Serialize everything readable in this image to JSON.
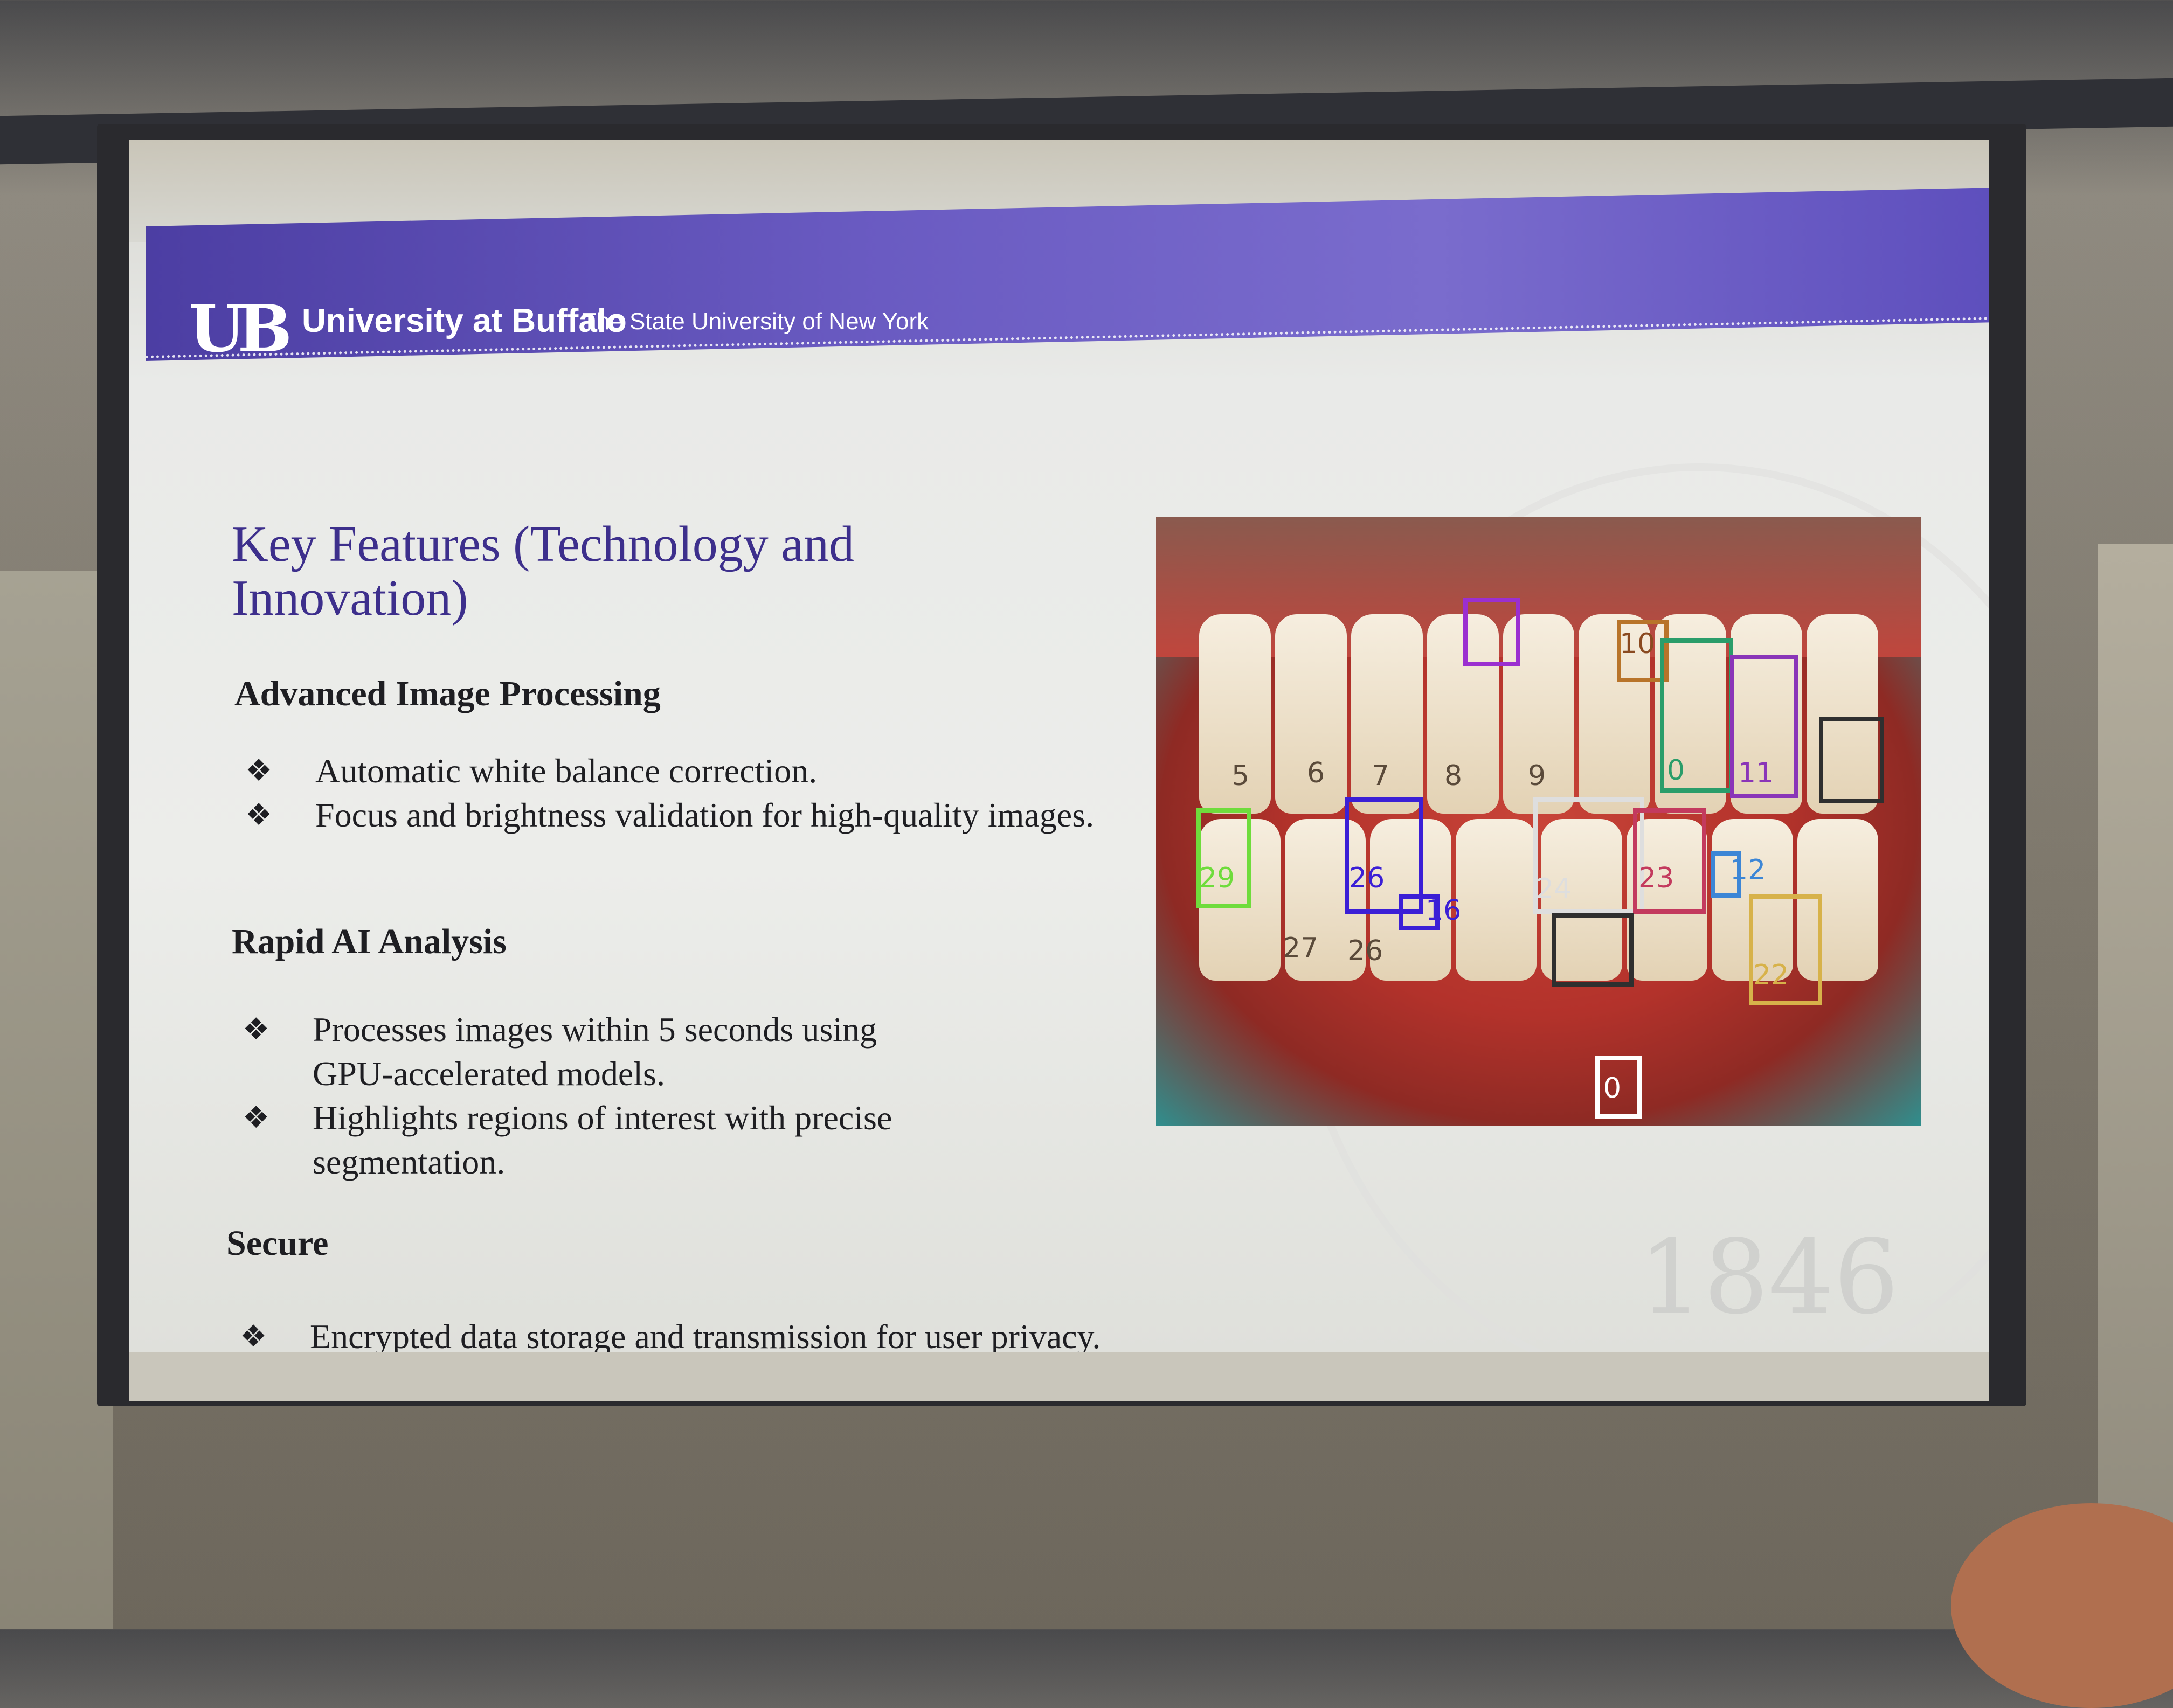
{
  "header": {
    "logo": "UB",
    "university": "University at Buffalo",
    "subtitle": "The State University of New York"
  },
  "slide": {
    "title": "Key Features (Technology and Innovation)",
    "sections": [
      {
        "heading": "Advanced Image Processing",
        "bullets": [
          "Automatic white balance correction.",
          "Focus and brightness validation for high-quality images."
        ]
      },
      {
        "heading": "Rapid AI Analysis",
        "bullets": [
          "Processes images within 5 seconds using GPU-accelerated models.",
          "Highlights regions of interest with precise segmentation."
        ]
      },
      {
        "heading": "Secure",
        "bullets": [
          "Encrypted data storage and transmission for user privacy."
        ]
      }
    ],
    "watermark_year": "1846"
  },
  "detection_labels": [
    "5",
    "6",
    "7",
    "8",
    "9",
    "10",
    "0",
    "11",
    "29",
    "26",
    "16",
    "27",
    "26",
    "24",
    "23",
    "12",
    "22",
    "0"
  ],
  "colors": {
    "banner": "#5b4db8",
    "title": "#3d2f8c"
  }
}
